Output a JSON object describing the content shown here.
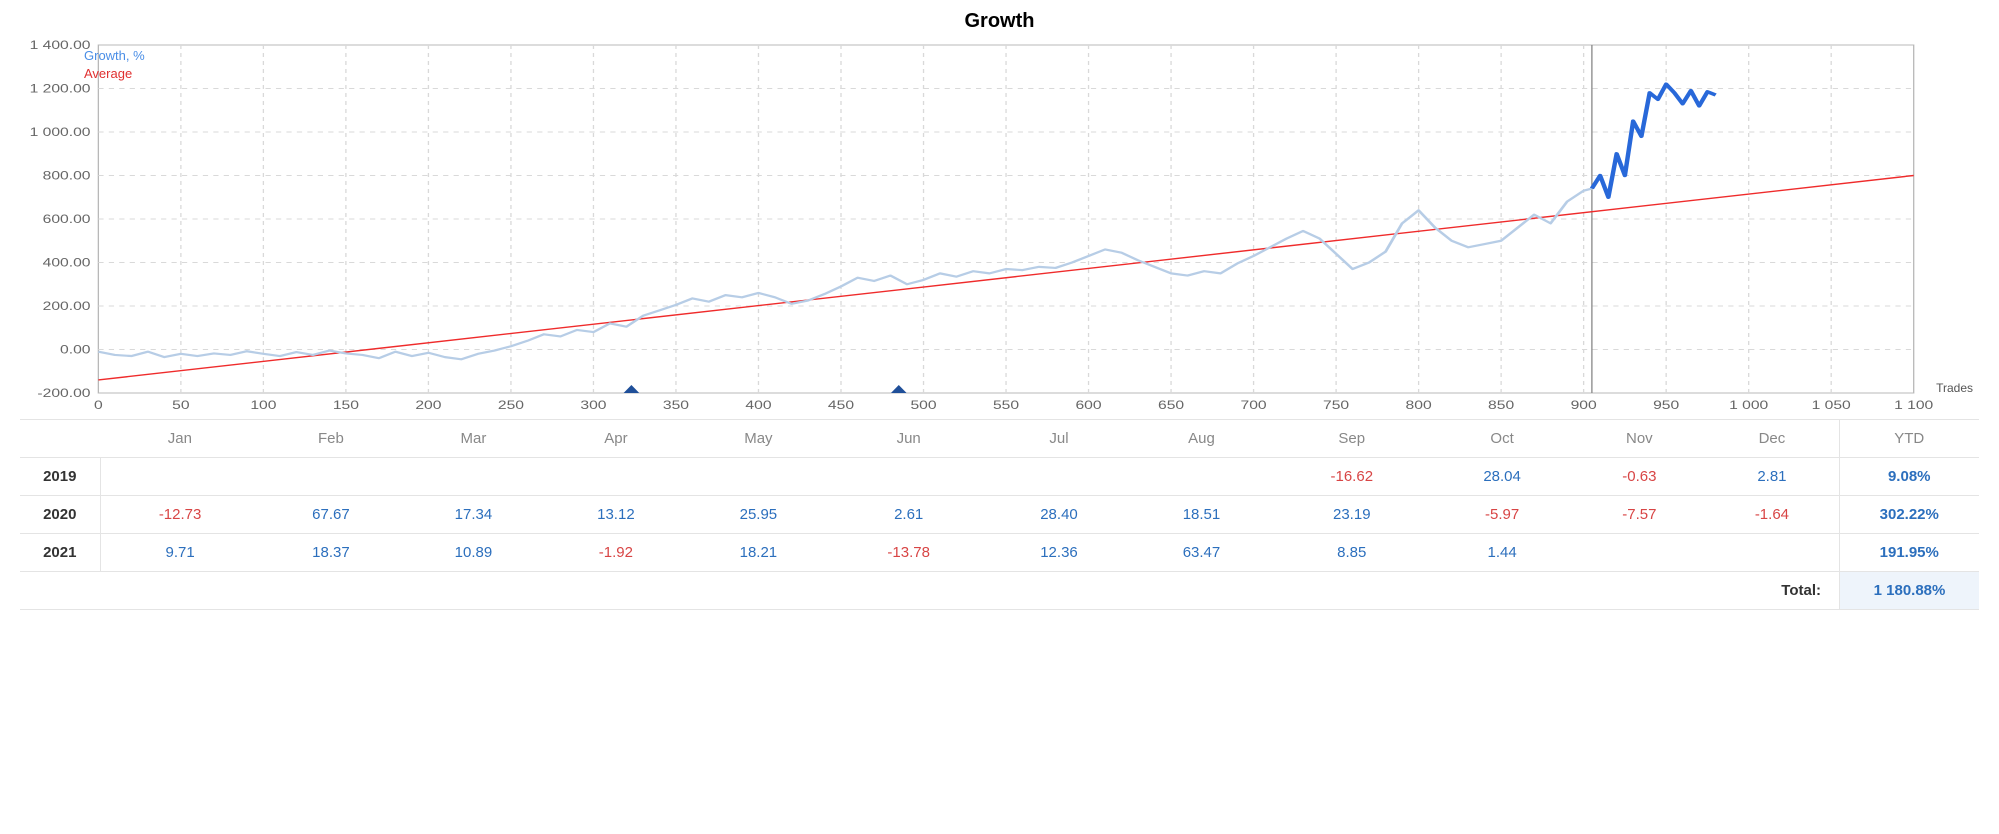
{
  "chart": {
    "title": "Growth",
    "type": "line",
    "legend": {
      "growth": "Growth, %",
      "average": "Average"
    },
    "x_axis_label": "Trades",
    "xlim": [
      0,
      1100
    ],
    "ylim": [
      -200,
      1400
    ],
    "y_ticks": [
      -200,
      0,
      200,
      400,
      600,
      800,
      1000,
      1200,
      1400
    ],
    "y_tick_labels": [
      "-200.00",
      "0.00",
      "200.00",
      "400.00",
      "600.00",
      "800.00",
      "1 000.00",
      "1 200.00",
      "1 400.00"
    ],
    "x_ticks": [
      0,
      50,
      100,
      150,
      200,
      250,
      300,
      350,
      400,
      450,
      500,
      550,
      600,
      650,
      700,
      750,
      800,
      850,
      900,
      950,
      1000,
      1050,
      1100
    ],
    "x_tick_labels": [
      "0",
      "50",
      "100",
      "150",
      "200",
      "250",
      "300",
      "350",
      "400",
      "450",
      "500",
      "550",
      "600",
      "650",
      "700",
      "750",
      "800",
      "850",
      "900",
      "950",
      "1 000",
      "1 050",
      "1 100"
    ],
    "background_color": "#ffffff",
    "grid_color": "#d9d9d9",
    "border_color": "#b8b8b8",
    "growth_color_faded": "#b7cde6",
    "growth_color_recent": "#2868d9",
    "average_color": "#ef2b2b",
    "vertical_marker_x": 905,
    "vertical_marker_color": "#888888",
    "marker_triangles_x": [
      323,
      485
    ],
    "marker_triangle_color": "#1f4f99",
    "average_line": {
      "x1": 0,
      "y1": -140,
      "x2": 1100,
      "y2": 800
    },
    "growth_points": [
      [
        0,
        -10
      ],
      [
        10,
        -25
      ],
      [
        20,
        -30
      ],
      [
        30,
        -10
      ],
      [
        40,
        -35
      ],
      [
        50,
        -20
      ],
      [
        60,
        -30
      ],
      [
        70,
        -18
      ],
      [
        80,
        -25
      ],
      [
        90,
        -8
      ],
      [
        100,
        -20
      ],
      [
        110,
        -30
      ],
      [
        120,
        -12
      ],
      [
        130,
        -25
      ],
      [
        140,
        -5
      ],
      [
        150,
        -18
      ],
      [
        160,
        -25
      ],
      [
        170,
        -40
      ],
      [
        180,
        -10
      ],
      [
        190,
        -30
      ],
      [
        200,
        -15
      ],
      [
        210,
        -35
      ],
      [
        220,
        -45
      ],
      [
        230,
        -20
      ],
      [
        240,
        -5
      ],
      [
        250,
        15
      ],
      [
        260,
        40
      ],
      [
        270,
        70
      ],
      [
        280,
        60
      ],
      [
        290,
        90
      ],
      [
        300,
        80
      ],
      [
        310,
        120
      ],
      [
        320,
        105
      ],
      [
        330,
        155
      ],
      [
        340,
        180
      ],
      [
        350,
        205
      ],
      [
        360,
        235
      ],
      [
        370,
        220
      ],
      [
        380,
        250
      ],
      [
        390,
        240
      ],
      [
        400,
        260
      ],
      [
        410,
        240
      ],
      [
        420,
        210
      ],
      [
        430,
        225
      ],
      [
        440,
        255
      ],
      [
        450,
        290
      ],
      [
        460,
        330
      ],
      [
        470,
        315
      ],
      [
        480,
        340
      ],
      [
        490,
        300
      ],
      [
        500,
        320
      ],
      [
        510,
        350
      ],
      [
        520,
        335
      ],
      [
        530,
        360
      ],
      [
        540,
        350
      ],
      [
        550,
        370
      ],
      [
        560,
        365
      ],
      [
        570,
        380
      ],
      [
        580,
        375
      ],
      [
        590,
        400
      ],
      [
        600,
        430
      ],
      [
        610,
        460
      ],
      [
        620,
        445
      ],
      [
        630,
        410
      ],
      [
        640,
        380
      ],
      [
        650,
        350
      ],
      [
        660,
        340
      ],
      [
        670,
        360
      ],
      [
        680,
        350
      ],
      [
        690,
        395
      ],
      [
        700,
        430
      ],
      [
        710,
        470
      ],
      [
        720,
        510
      ],
      [
        730,
        545
      ],
      [
        740,
        510
      ],
      [
        750,
        440
      ],
      [
        760,
        370
      ],
      [
        770,
        400
      ],
      [
        780,
        450
      ],
      [
        790,
        580
      ],
      [
        800,
        640
      ],
      [
        810,
        560
      ],
      [
        820,
        500
      ],
      [
        830,
        470
      ],
      [
        840,
        485
      ],
      [
        850,
        500
      ],
      [
        860,
        560
      ],
      [
        870,
        620
      ],
      [
        880,
        580
      ],
      [
        890,
        680
      ],
      [
        900,
        730
      ],
      [
        905,
        740
      ],
      [
        910,
        800
      ],
      [
        915,
        700
      ],
      [
        920,
        900
      ],
      [
        925,
        800
      ],
      [
        930,
        1050
      ],
      [
        935,
        980
      ],
      [
        940,
        1180
      ],
      [
        945,
        1150
      ],
      [
        950,
        1220
      ],
      [
        955,
        1180
      ],
      [
        960,
        1130
      ],
      [
        965,
        1190
      ],
      [
        970,
        1120
      ],
      [
        975,
        1185
      ],
      [
        980,
        1170
      ]
    ],
    "recent_split_index": 91,
    "axis_fontsize": 12,
    "axis_text_color": "#666666",
    "title_fontsize": 20,
    "growth_line_width_faded": 2.2,
    "growth_line_width_recent": 3.4,
    "average_line_width": 1.4
  },
  "table": {
    "months": [
      "Jan",
      "Feb",
      "Mar",
      "Apr",
      "May",
      "Jun",
      "Jul",
      "Aug",
      "Sep",
      "Oct",
      "Nov",
      "Dec"
    ],
    "ytd_label": "YTD",
    "years": [
      {
        "year": "2019",
        "values": [
          null,
          null,
          null,
          null,
          null,
          null,
          null,
          null,
          -16.62,
          28.04,
          -0.63,
          2.81
        ],
        "ytd": "9.08%"
      },
      {
        "year": "2020",
        "values": [
          -12.73,
          67.67,
          17.34,
          13.12,
          25.95,
          2.61,
          28.4,
          18.51,
          23.19,
          -5.97,
          -7.57,
          -1.64
        ],
        "ytd": "302.22%"
      },
      {
        "year": "2021",
        "values": [
          9.71,
          18.37,
          10.89,
          -1.92,
          18.21,
          -13.78,
          12.36,
          63.47,
          8.85,
          1.44,
          null,
          null
        ],
        "ytd": "191.95%"
      }
    ],
    "total_label": "Total:",
    "total_value": "1 180.88%",
    "pos_color": "#2c6fbd",
    "neg_color": "#d84545",
    "header_color": "#888888",
    "border_color": "#e4e4e4"
  }
}
